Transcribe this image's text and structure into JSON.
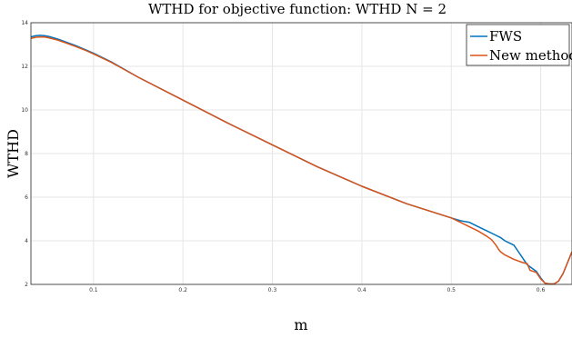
{
  "chart_data": {
    "type": "line",
    "title": "WTHD for objective function: WTHD N = 2",
    "xlabel": "m",
    "ylabel": "WTHD",
    "xlim": [
      0.03,
      0.635
    ],
    "ylim": [
      2,
      14
    ],
    "xticks": [
      0.1,
      0.2,
      0.3,
      0.4,
      0.5,
      0.6
    ],
    "yticks": [
      2,
      4,
      6,
      8,
      10,
      12,
      14
    ],
    "grid": true,
    "legend_position": "top-right",
    "series": [
      {
        "name": "FWS",
        "color": "#0072BD",
        "points": [
          [
            0.03,
            13.35
          ],
          [
            0.035,
            13.4
          ],
          [
            0.04,
            13.42
          ],
          [
            0.045,
            13.41
          ],
          [
            0.05,
            13.37
          ],
          [
            0.06,
            13.25
          ],
          [
            0.07,
            13.1
          ],
          [
            0.08,
            12.95
          ],
          [
            0.09,
            12.78
          ],
          [
            0.1,
            12.6
          ],
          [
            0.12,
            12.2
          ],
          [
            0.15,
            11.5
          ],
          [
            0.2,
            10.45
          ],
          [
            0.25,
            9.4
          ],
          [
            0.3,
            8.4
          ],
          [
            0.35,
            7.4
          ],
          [
            0.4,
            6.5
          ],
          [
            0.45,
            5.7
          ],
          [
            0.5,
            5.05
          ],
          [
            0.51,
            4.92
          ],
          [
            0.52,
            4.85
          ],
          [
            0.53,
            4.65
          ],
          [
            0.54,
            4.45
          ],
          [
            0.55,
            4.25
          ],
          [
            0.555,
            4.15
          ],
          [
            0.56,
            4.0
          ],
          [
            0.565,
            3.9
          ],
          [
            0.57,
            3.8
          ],
          [
            0.575,
            3.5
          ],
          [
            0.58,
            3.2
          ],
          [
            0.585,
            2.9
          ],
          [
            0.59,
            2.75
          ],
          [
            0.595,
            2.6
          ],
          [
            0.6,
            2.3
          ],
          [
            0.605,
            2.05
          ],
          [
            0.61,
            2.02
          ],
          [
            0.615,
            2.02
          ],
          [
            0.62,
            2.15
          ],
          [
            0.625,
            2.5
          ],
          [
            0.63,
            3.0
          ],
          [
            0.635,
            3.5
          ]
        ]
      },
      {
        "name": "New method",
        "color": "#D95319",
        "points": [
          [
            0.03,
            13.28
          ],
          [
            0.035,
            13.33
          ],
          [
            0.04,
            13.35
          ],
          [
            0.045,
            13.34
          ],
          [
            0.05,
            13.31
          ],
          [
            0.06,
            13.2
          ],
          [
            0.07,
            13.06
          ],
          [
            0.08,
            12.91
          ],
          [
            0.09,
            12.75
          ],
          [
            0.1,
            12.57
          ],
          [
            0.12,
            12.18
          ],
          [
            0.15,
            11.5
          ],
          [
            0.2,
            10.45
          ],
          [
            0.25,
            9.4
          ],
          [
            0.3,
            8.4
          ],
          [
            0.35,
            7.4
          ],
          [
            0.4,
            6.5
          ],
          [
            0.45,
            5.7
          ],
          [
            0.5,
            5.05
          ],
          [
            0.51,
            4.85
          ],
          [
            0.52,
            4.65
          ],
          [
            0.53,
            4.45
          ],
          [
            0.54,
            4.2
          ],
          [
            0.545,
            4.05
          ],
          [
            0.55,
            3.8
          ],
          [
            0.553,
            3.6
          ],
          [
            0.555,
            3.5
          ],
          [
            0.56,
            3.35
          ],
          [
            0.57,
            3.15
          ],
          [
            0.58,
            3.0
          ],
          [
            0.585,
            2.95
          ],
          [
            0.588,
            2.65
          ],
          [
            0.59,
            2.62
          ],
          [
            0.595,
            2.55
          ],
          [
            0.6,
            2.25
          ],
          [
            0.605,
            2.05
          ],
          [
            0.61,
            2.02
          ],
          [
            0.615,
            2.02
          ],
          [
            0.62,
            2.15
          ],
          [
            0.625,
            2.5
          ],
          [
            0.63,
            3.0
          ],
          [
            0.635,
            3.5
          ]
        ]
      }
    ]
  }
}
